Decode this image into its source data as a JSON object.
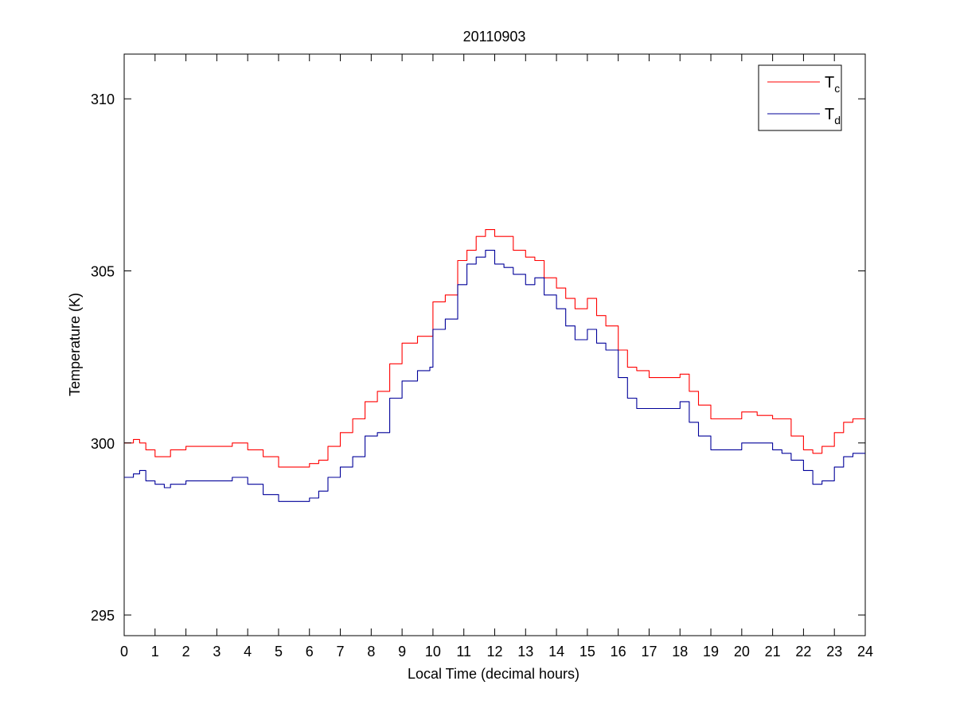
{
  "chart_data": {
    "type": "line",
    "title": "20110903",
    "xlabel": "Local Time (decimal hours)",
    "ylabel": "Temperature (K)",
    "xlim": [
      0,
      24
    ],
    "ylim": [
      294.4,
      311.3
    ],
    "xticks": [
      0,
      1,
      2,
      3,
      4,
      5,
      6,
      7,
      8,
      9,
      10,
      11,
      12,
      13,
      14,
      15,
      16,
      17,
      18,
      19,
      20,
      21,
      22,
      23,
      24
    ],
    "yticks": [
      295,
      300,
      305,
      310
    ],
    "grid": false,
    "legend_position": "top-right",
    "series": [
      {
        "name": "T",
        "name_subscript": "c",
        "color": "#ff0000",
        "x": [
          0,
          0.3,
          0.5,
          0.7,
          1.0,
          1.3,
          1.5,
          2.0,
          2.5,
          3.0,
          3.5,
          3.8,
          4.0,
          4.5,
          5.0,
          5.5,
          6.0,
          6.3,
          6.6,
          7.0,
          7.4,
          7.8,
          8.2,
          8.6,
          9.0,
          9.5,
          9.9,
          10.0,
          10.4,
          10.8,
          11.1,
          11.4,
          11.7,
          12.0,
          12.3,
          12.6,
          13.0,
          13.3,
          13.6,
          14.0,
          14.3,
          14.6,
          15.0,
          15.3,
          15.6,
          16.0,
          16.3,
          16.6,
          17.0,
          17.5,
          18.0,
          18.3,
          18.6,
          19.0,
          19.5,
          20.0,
          20.5,
          21.0,
          21.3,
          21.6,
          22.0,
          22.3,
          22.6,
          23.0,
          23.3,
          23.6,
          24.0
        ],
        "y": [
          300.0,
          300.1,
          300.0,
          299.8,
          299.6,
          299.6,
          299.8,
          299.9,
          299.9,
          299.9,
          300.0,
          300.0,
          299.8,
          299.6,
          299.3,
          299.3,
          299.4,
          299.5,
          299.9,
          300.3,
          300.7,
          301.2,
          301.5,
          302.3,
          302.9,
          303.1,
          303.1,
          304.1,
          304.3,
          305.3,
          305.6,
          306.0,
          306.2,
          306.0,
          306.0,
          305.6,
          305.4,
          305.3,
          304.8,
          304.5,
          304.2,
          303.9,
          304.2,
          303.7,
          303.4,
          302.7,
          302.2,
          302.1,
          301.9,
          301.9,
          302.0,
          301.5,
          301.1,
          300.7,
          300.7,
          300.9,
          300.8,
          300.7,
          300.7,
          300.2,
          299.8,
          299.7,
          299.9,
          300.3,
          300.6,
          300.7,
          300.7
        ]
      },
      {
        "name": "T",
        "name_subscript": "d",
        "color": "#000099",
        "x": [
          0,
          0.3,
          0.5,
          0.7,
          1.0,
          1.3,
          1.5,
          2.0,
          2.5,
          3.0,
          3.5,
          3.8,
          4.0,
          4.5,
          5.0,
          5.5,
          6.0,
          6.3,
          6.6,
          7.0,
          7.4,
          7.8,
          8.2,
          8.6,
          9.0,
          9.5,
          9.9,
          10.0,
          10.4,
          10.8,
          11.1,
          11.4,
          11.7,
          12.0,
          12.3,
          12.6,
          13.0,
          13.3,
          13.6,
          14.0,
          14.3,
          14.6,
          15.0,
          15.3,
          15.6,
          16.0,
          16.3,
          16.6,
          17.0,
          17.5,
          18.0,
          18.3,
          18.6,
          19.0,
          19.5,
          20.0,
          20.5,
          21.0,
          21.3,
          21.6,
          22.0,
          22.3,
          22.6,
          23.0,
          23.3,
          23.6,
          24.0
        ],
        "y": [
          299.0,
          299.1,
          299.2,
          298.9,
          298.8,
          298.7,
          298.8,
          298.9,
          298.9,
          298.9,
          299.0,
          299.0,
          298.8,
          298.5,
          298.3,
          298.3,
          298.4,
          298.6,
          299.0,
          299.3,
          299.6,
          300.2,
          300.3,
          301.3,
          301.8,
          302.1,
          302.2,
          303.3,
          303.6,
          304.6,
          305.2,
          305.4,
          305.6,
          305.2,
          305.1,
          304.9,
          304.6,
          304.8,
          304.3,
          303.9,
          303.4,
          303.0,
          303.3,
          302.9,
          302.7,
          301.9,
          301.3,
          301.0,
          301.0,
          301.0,
          301.2,
          300.6,
          300.2,
          299.8,
          299.8,
          300.0,
          300.0,
          299.8,
          299.7,
          299.5,
          299.2,
          298.8,
          298.9,
          299.3,
          299.6,
          299.7,
          299.7
        ]
      }
    ]
  }
}
